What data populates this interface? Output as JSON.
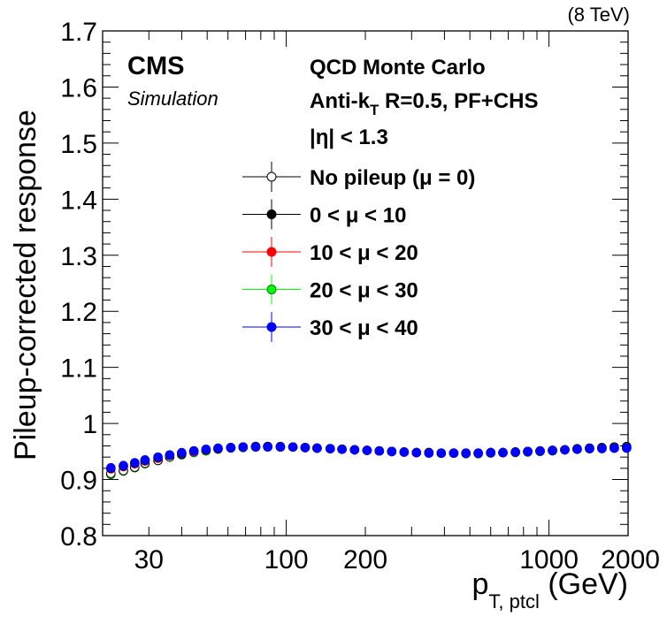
{
  "header": {
    "energy": "(8 TeV)"
  },
  "labels": {
    "cms": "CMS",
    "simulation": "Simulation",
    "info_line1": "QCD Monte Carlo",
    "info_line2_prefix": "Anti-k",
    "info_line2_sub": "T",
    "info_line2_suffix": " R=0.5, PF+CHS",
    "info_line3": "|η| < 1.3"
  },
  "chart_data": {
    "type": "scatter",
    "title": "",
    "xlabel": "p_{T, ptcl} (GeV)",
    "xlabel_main": "p",
    "xlabel_sub": "T, ptcl",
    "xlabel_unit": " (GeV)",
    "ylabel": "Pileup-corrected response",
    "xscale": "log",
    "xlim": [
      20,
      2000
    ],
    "ylim": [
      0.8,
      1.7
    ],
    "x_ticks": [
      30,
      100,
      200,
      1000,
      2000
    ],
    "x_tick_labels": [
      "30",
      "100",
      "200",
      "1000",
      "2000"
    ],
    "y_ticks": [
      0.8,
      0.9,
      1.0,
      1.1,
      1.2,
      1.3,
      1.4,
      1.5,
      1.6,
      1.7
    ],
    "y_tick_labels": [
      "0.8",
      "0.9",
      "1",
      "1.1",
      "1.2",
      "1.3",
      "1.4",
      "1.5",
      "1.6",
      "1.7"
    ],
    "grid": false,
    "legend_position": "top-center",
    "x": [
      21.5,
      24,
      26.5,
      29,
      32.5,
      36,
      40,
      44.5,
      49.5,
      55,
      61.5,
      68.5,
      76.5,
      85,
      95,
      106,
      118,
      131,
      147,
      163,
      182,
      203,
      226,
      252,
      281,
      313,
      349,
      389,
      434,
      483,
      538,
      600,
      668,
      745,
      830,
      925,
      1031,
      1149,
      1280,
      1427,
      1590,
      1772,
      1975
    ],
    "series": [
      {
        "name": "No pileup (μ = 0)",
        "color": "#000000",
        "marker": "open-circle",
        "values": [
          0.911,
          0.916,
          0.922,
          0.929,
          0.934,
          0.94,
          0.945,
          0.95,
          0.953,
          0.955,
          0.957,
          0.958,
          0.959,
          0.959,
          0.959,
          0.958,
          0.957,
          0.956,
          0.955,
          0.954,
          0.953,
          0.952,
          0.951,
          0.95,
          0.949,
          0.948,
          0.948,
          0.947,
          0.947,
          0.947,
          0.947,
          0.948,
          0.948,
          0.949,
          0.95,
          0.951,
          0.952,
          0.953,
          0.955,
          0.956,
          0.957,
          0.958,
          0.959
        ]
      },
      {
        "name": "0 < μ < 10",
        "color": "#000000",
        "marker": "filled-circle",
        "values": [
          0.92,
          0.924,
          0.929,
          0.934,
          0.939,
          0.943,
          0.947,
          0.951,
          0.953,
          0.955,
          0.957,
          0.958,
          0.959,
          0.959,
          0.958,
          0.958,
          0.957,
          0.956,
          0.955,
          0.954,
          0.953,
          0.952,
          0.951,
          0.95,
          0.949,
          0.948,
          0.948,
          0.947,
          0.947,
          0.947,
          0.947,
          0.948,
          0.948,
          0.949,
          0.95,
          0.951,
          0.952,
          0.953,
          0.954,
          0.955,
          0.956,
          0.956,
          0.957
        ]
      },
      {
        "name": "10 < μ < 20",
        "color": "#ff0000",
        "marker": "filled-circle",
        "values": [
          0.919,
          0.923,
          0.928,
          0.933,
          0.938,
          0.943,
          0.947,
          0.95,
          0.953,
          0.955,
          0.957,
          0.958,
          0.958,
          0.959,
          0.958,
          0.958,
          0.957,
          0.956,
          0.955,
          0.954,
          0.953,
          0.952,
          0.951,
          0.95,
          0.949,
          0.948,
          0.948,
          0.947,
          0.947,
          0.947,
          0.947,
          0.948,
          0.948,
          0.949,
          0.95,
          0.951,
          0.952,
          0.953,
          0.954,
          0.955,
          0.956,
          0.956,
          0.956
        ]
      },
      {
        "name": "20 < μ < 30",
        "color": "#00ff00",
        "marker": "filled-circle",
        "values": [
          0.909,
          0.915,
          0.921,
          0.928,
          0.934,
          0.94,
          0.944,
          0.948,
          0.951,
          0.954,
          0.956,
          0.957,
          0.958,
          0.958,
          0.958,
          0.958,
          0.957,
          0.956,
          0.955,
          0.954,
          0.953,
          0.952,
          0.951,
          0.95,
          0.949,
          0.948,
          0.947,
          0.947,
          0.947,
          0.946,
          0.946,
          0.947,
          0.948,
          0.948,
          0.949,
          0.95,
          0.951,
          0.953,
          0.954,
          0.956,
          0.957,
          0.958,
          0.958
        ]
      },
      {
        "name": "30 < μ < 40",
        "color": "#0000ff",
        "marker": "filled-circle",
        "values": [
          0.921,
          0.925,
          0.93,
          0.935,
          0.94,
          0.944,
          0.948,
          0.951,
          0.954,
          0.956,
          0.957,
          0.958,
          0.958,
          0.958,
          0.958,
          0.958,
          0.957,
          0.956,
          0.955,
          0.954,
          0.953,
          0.952,
          0.951,
          0.95,
          0.949,
          0.948,
          0.947,
          0.947,
          0.947,
          0.947,
          0.947,
          0.948,
          0.948,
          0.949,
          0.95,
          0.951,
          0.952,
          0.953,
          0.954,
          0.955,
          0.955,
          0.956,
          0.956
        ]
      }
    ]
  }
}
